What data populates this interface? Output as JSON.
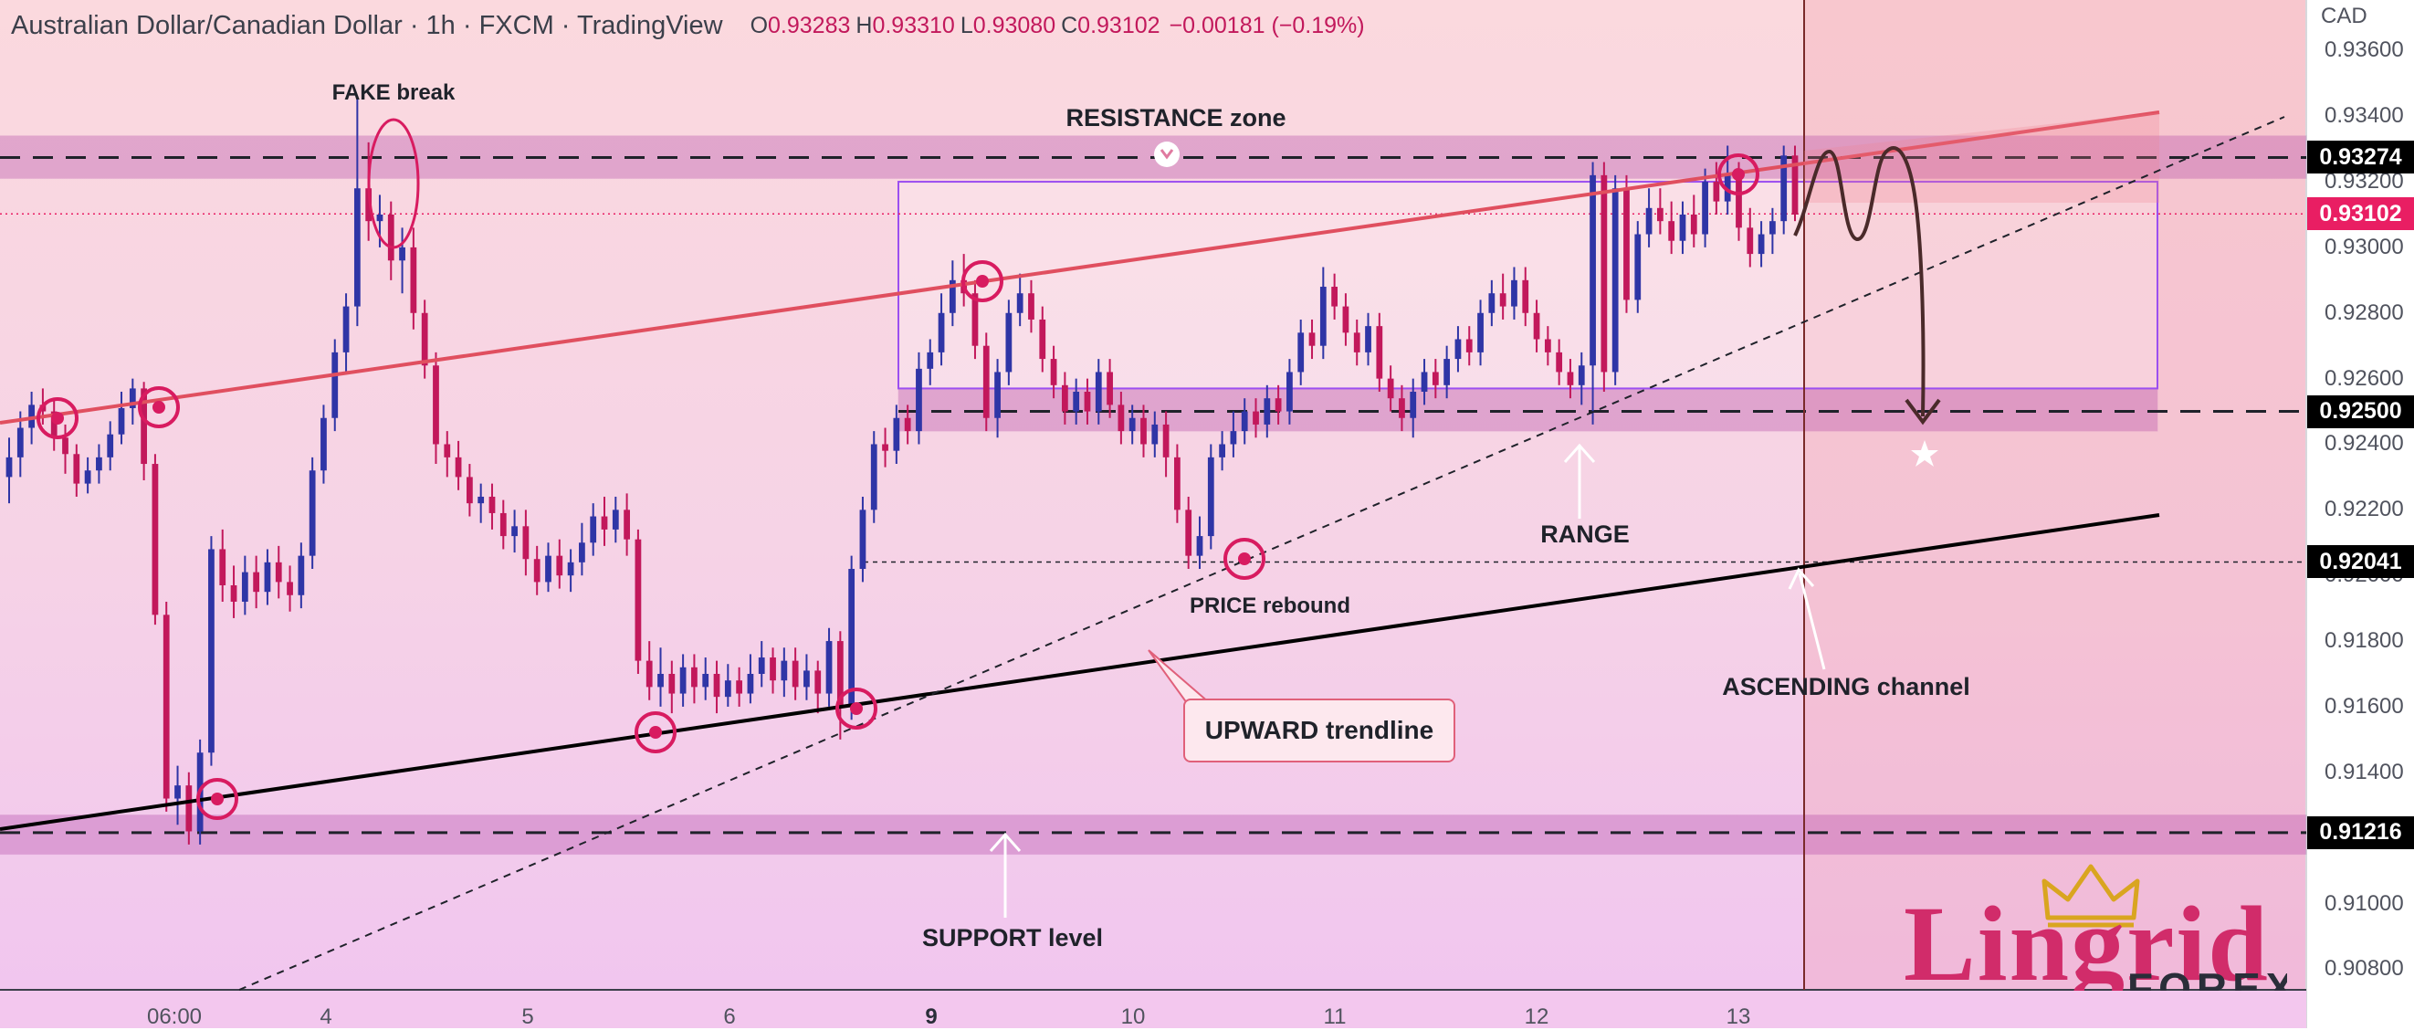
{
  "header": {
    "title": "Australian Dollar/Canadian Dollar · 1h · FXCM · TradingView",
    "ohlc": [
      {
        "label": "O",
        "value": "0.93283"
      },
      {
        "label": "H",
        "value": "0.93310"
      },
      {
        "label": "L",
        "value": "0.93080"
      },
      {
        "label": "C",
        "value": "0.93102"
      }
    ],
    "change": "−0.00181 (−0.19%)"
  },
  "axis_unit": "CAD",
  "colors": {
    "bull": "#2f35a6",
    "bear": "#c2185b",
    "resistance_line": "#e04f5f",
    "trendline": "#000000",
    "zone_fill": "#b44aa8",
    "range_box": "#9c4ff0",
    "forecast": "#4a2a2a",
    "price_tag": "#e91e63"
  },
  "chart_data": {
    "type": "candlestick",
    "y_range": [
      0.9062,
      0.9382
    ],
    "y_ticks": [
      "0.93600",
      "0.93400",
      "0.93200",
      "0.93000",
      "0.92800",
      "0.92600",
      "0.92400",
      "0.92200",
      "0.92000",
      "0.91800",
      "0.91600",
      "0.91400",
      "0.91200",
      "0.91000",
      "0.90800"
    ],
    "x_ticks": [
      {
        "label": "06:00",
        "bold": false
      },
      {
        "label": "4",
        "bold": false
      },
      {
        "label": "5",
        "bold": false
      },
      {
        "label": "6",
        "bold": false
      },
      {
        "label": "9",
        "bold": true
      },
      {
        "label": "10",
        "bold": false
      },
      {
        "label": "11",
        "bold": false
      },
      {
        "label": "12",
        "bold": false
      },
      {
        "label": "13",
        "bold": false
      }
    ],
    "price_tags": [
      {
        "value": "0.93274",
        "color": "#000000"
      },
      {
        "value": "0.93102",
        "color": "#e91e63"
      },
      {
        "value": "0.92500",
        "color": "#000000"
      },
      {
        "value": "0.92041",
        "color": "#000000"
      },
      {
        "value": "0.91216",
        "color": "#000000"
      }
    ],
    "levels": {
      "resistance": 0.93274,
      "range_low": 0.925,
      "price_rebound": 0.92041,
      "support": 0.91216,
      "current": 0.93102
    },
    "zones": [
      {
        "name": "resistance-zone",
        "from": 0.9321,
        "to": 0.9334
      },
      {
        "name": "range-low-zone",
        "from": 0.9244,
        "to": 0.9257
      },
      {
        "name": "support-zone",
        "from": 0.9115,
        "to": 0.9127
      }
    ],
    "range_box": {
      "from": 0.9257,
      "to": 0.932
    },
    "candles": [
      [
        0.923,
        0.9236,
        0.9222,
        0.9242
      ],
      [
        0.9236,
        0.9245,
        0.923,
        0.925
      ],
      [
        0.9245,
        0.9252,
        0.924,
        0.9256
      ],
      [
        0.9252,
        0.925,
        0.9246,
        0.9257
      ],
      [
        0.925,
        0.9242,
        0.9238,
        0.9254
      ],
      [
        0.9242,
        0.9237,
        0.9231,
        0.9246
      ],
      [
        0.9237,
        0.9228,
        0.9224,
        0.924
      ],
      [
        0.9228,
        0.9232,
        0.9225,
        0.9236
      ],
      [
        0.9232,
        0.9236,
        0.9228,
        0.924
      ],
      [
        0.9236,
        0.9243,
        0.9232,
        0.9247
      ],
      [
        0.9243,
        0.9251,
        0.924,
        0.9256
      ],
      [
        0.9251,
        0.9257,
        0.9246,
        0.926
      ],
      [
        0.9257,
        0.9234,
        0.9229,
        0.9259
      ],
      [
        0.9234,
        0.9188,
        0.9185,
        0.9237
      ],
      [
        0.9188,
        0.9132,
        0.9128,
        0.9192
      ],
      [
        0.9132,
        0.9136,
        0.9124,
        0.9142
      ],
      [
        0.9136,
        0.9122,
        0.9118,
        0.914
      ],
      [
        0.9122,
        0.9146,
        0.9118,
        0.915
      ],
      [
        0.9146,
        0.9208,
        0.9142,
        0.9212
      ],
      [
        0.9208,
        0.9197,
        0.9192,
        0.9214
      ],
      [
        0.9197,
        0.9192,
        0.9187,
        0.9203
      ],
      [
        0.9192,
        0.9201,
        0.9188,
        0.9206
      ],
      [
        0.9201,
        0.9195,
        0.919,
        0.9206
      ],
      [
        0.9195,
        0.9204,
        0.9191,
        0.9208
      ],
      [
        0.9204,
        0.9198,
        0.9193,
        0.9209
      ],
      [
        0.9198,
        0.9194,
        0.9189,
        0.9203
      ],
      [
        0.9194,
        0.9206,
        0.919,
        0.921
      ],
      [
        0.9206,
        0.9232,
        0.9202,
        0.9236
      ],
      [
        0.9232,
        0.9248,
        0.9228,
        0.9252
      ],
      [
        0.9248,
        0.9268,
        0.9244,
        0.9272
      ],
      [
        0.9268,
        0.9282,
        0.9262,
        0.9286
      ],
      [
        0.9282,
        0.9318,
        0.9276,
        0.9346
      ],
      [
        0.9318,
        0.9308,
        0.9302,
        0.9332
      ],
      [
        0.9308,
        0.931,
        0.93,
        0.9316
      ],
      [
        0.931,
        0.9296,
        0.929,
        0.9314
      ],
      [
        0.9296,
        0.93,
        0.9286,
        0.9306
      ],
      [
        0.93,
        0.928,
        0.9275,
        0.9306
      ],
      [
        0.928,
        0.9264,
        0.926,
        0.9284
      ],
      [
        0.9264,
        0.924,
        0.9234,
        0.9268
      ],
      [
        0.924,
        0.9236,
        0.923,
        0.9244
      ],
      [
        0.9236,
        0.923,
        0.9226,
        0.9241
      ],
      [
        0.923,
        0.9222,
        0.9218,
        0.9234
      ],
      [
        0.9222,
        0.9224,
        0.9216,
        0.9228
      ],
      [
        0.9224,
        0.9219,
        0.9214,
        0.9228
      ],
      [
        0.9219,
        0.9212,
        0.9208,
        0.9223
      ],
      [
        0.9212,
        0.9215,
        0.9207,
        0.922
      ],
      [
        0.9215,
        0.9205,
        0.92,
        0.922
      ],
      [
        0.9205,
        0.9198,
        0.9194,
        0.9209
      ],
      [
        0.9198,
        0.9206,
        0.9195,
        0.921
      ],
      [
        0.9206,
        0.92,
        0.9196,
        0.9211
      ],
      [
        0.92,
        0.9204,
        0.9195,
        0.9208
      ],
      [
        0.9204,
        0.921,
        0.92,
        0.9216
      ],
      [
        0.921,
        0.9218,
        0.9206,
        0.9222
      ],
      [
        0.9218,
        0.9214,
        0.9209,
        0.9224
      ],
      [
        0.9214,
        0.922,
        0.921,
        0.9224
      ],
      [
        0.922,
        0.9211,
        0.9206,
        0.9225
      ],
      [
        0.9211,
        0.9174,
        0.917,
        0.9214
      ],
      [
        0.9174,
        0.9166,
        0.9162,
        0.918
      ],
      [
        0.9166,
        0.917,
        0.916,
        0.9178
      ],
      [
        0.917,
        0.9164,
        0.9158,
        0.9174
      ],
      [
        0.9164,
        0.9172,
        0.916,
        0.9176
      ],
      [
        0.9172,
        0.9166,
        0.9161,
        0.9176
      ],
      [
        0.9166,
        0.917,
        0.9162,
        0.9175
      ],
      [
        0.917,
        0.9163,
        0.9158,
        0.9174
      ],
      [
        0.9163,
        0.9168,
        0.916,
        0.9173
      ],
      [
        0.9168,
        0.9164,
        0.916,
        0.9172
      ],
      [
        0.9164,
        0.917,
        0.9161,
        0.9176
      ],
      [
        0.917,
        0.9175,
        0.9166,
        0.918
      ],
      [
        0.9175,
        0.9168,
        0.9164,
        0.9178
      ],
      [
        0.9168,
        0.9174,
        0.9163,
        0.9178
      ],
      [
        0.9174,
        0.9166,
        0.9162,
        0.9178
      ],
      [
        0.9166,
        0.9171,
        0.9162,
        0.9176
      ],
      [
        0.9171,
        0.9164,
        0.9158,
        0.9174
      ],
      [
        0.9164,
        0.918,
        0.916,
        0.9184
      ],
      [
        0.918,
        0.916,
        0.915,
        0.9183
      ],
      [
        0.916,
        0.9202,
        0.9156,
        0.9206
      ],
      [
        0.9202,
        0.922,
        0.9198,
        0.9224
      ],
      [
        0.922,
        0.924,
        0.9216,
        0.9244
      ],
      [
        0.924,
        0.9238,
        0.9233,
        0.9245
      ],
      [
        0.9238,
        0.9248,
        0.9234,
        0.9252
      ],
      [
        0.9248,
        0.9244,
        0.924,
        0.9252
      ],
      [
        0.9244,
        0.9263,
        0.924,
        0.9268
      ],
      [
        0.9263,
        0.9268,
        0.9258,
        0.9272
      ],
      [
        0.9268,
        0.928,
        0.9264,
        0.9286
      ],
      [
        0.928,
        0.929,
        0.9276,
        0.9296
      ],
      [
        0.929,
        0.9286,
        0.9282,
        0.9298
      ],
      [
        0.9286,
        0.927,
        0.9266,
        0.929
      ],
      [
        0.927,
        0.9248,
        0.9244,
        0.9274
      ],
      [
        0.9248,
        0.9262,
        0.9242,
        0.9266
      ],
      [
        0.9262,
        0.928,
        0.9258,
        0.9284
      ],
      [
        0.928,
        0.9286,
        0.9276,
        0.9292
      ],
      [
        0.9286,
        0.9278,
        0.9274,
        0.929
      ],
      [
        0.9278,
        0.9266,
        0.9262,
        0.9282
      ],
      [
        0.9266,
        0.9258,
        0.9254,
        0.927
      ],
      [
        0.9258,
        0.925,
        0.9246,
        0.9262
      ],
      [
        0.925,
        0.9256,
        0.9246,
        0.926
      ],
      [
        0.9256,
        0.925,
        0.9246,
        0.926
      ],
      [
        0.925,
        0.9262,
        0.9246,
        0.9266
      ],
      [
        0.9262,
        0.9252,
        0.9248,
        0.9266
      ],
      [
        0.9252,
        0.9244,
        0.924,
        0.9256
      ],
      [
        0.9244,
        0.9248,
        0.924,
        0.9252
      ],
      [
        0.9248,
        0.924,
        0.9236,
        0.9252
      ],
      [
        0.924,
        0.9246,
        0.9236,
        0.925
      ],
      [
        0.9246,
        0.9236,
        0.923,
        0.925
      ],
      [
        0.9236,
        0.922,
        0.9216,
        0.924
      ],
      [
        0.922,
        0.9206,
        0.9202,
        0.9224
      ],
      [
        0.9206,
        0.9212,
        0.9202,
        0.9218
      ],
      [
        0.9212,
        0.9236,
        0.9208,
        0.924
      ],
      [
        0.9236,
        0.924,
        0.9232,
        0.9244
      ],
      [
        0.924,
        0.9244,
        0.9236,
        0.925
      ],
      [
        0.9244,
        0.925,
        0.924,
        0.9254
      ],
      [
        0.925,
        0.9246,
        0.9242,
        0.9254
      ],
      [
        0.9246,
        0.9254,
        0.9242,
        0.9258
      ],
      [
        0.9254,
        0.925,
        0.9246,
        0.9258
      ],
      [
        0.925,
        0.9262,
        0.9246,
        0.9266
      ],
      [
        0.9262,
        0.9274,
        0.9258,
        0.9278
      ],
      [
        0.9274,
        0.927,
        0.9266,
        0.9278
      ],
      [
        0.927,
        0.9288,
        0.9266,
        0.9294
      ],
      [
        0.9288,
        0.9282,
        0.9278,
        0.9292
      ],
      [
        0.9282,
        0.9274,
        0.927,
        0.9286
      ],
      [
        0.9274,
        0.9268,
        0.9264,
        0.9278
      ],
      [
        0.9268,
        0.9276,
        0.9264,
        0.928
      ],
      [
        0.9276,
        0.926,
        0.9256,
        0.928
      ],
      [
        0.926,
        0.9254,
        0.925,
        0.9264
      ],
      [
        0.9254,
        0.9248,
        0.9244,
        0.9258
      ],
      [
        0.9248,
        0.9256,
        0.9242,
        0.926
      ],
      [
        0.9256,
        0.9262,
        0.9252,
        0.9266
      ],
      [
        0.9262,
        0.9258,
        0.9254,
        0.9266
      ],
      [
        0.9258,
        0.9266,
        0.9254,
        0.927
      ],
      [
        0.9266,
        0.9272,
        0.9262,
        0.9276
      ],
      [
        0.9272,
        0.9268,
        0.9264,
        0.9276
      ],
      [
        0.9268,
        0.928,
        0.9264,
        0.9284
      ],
      [
        0.928,
        0.9286,
        0.9276,
        0.929
      ],
      [
        0.9286,
        0.9282,
        0.9278,
        0.9292
      ],
      [
        0.9282,
        0.929,
        0.9278,
        0.9294
      ],
      [
        0.929,
        0.928,
        0.9276,
        0.9294
      ],
      [
        0.928,
        0.9272,
        0.9268,
        0.9284
      ],
      [
        0.9272,
        0.9268,
        0.9264,
        0.9276
      ],
      [
        0.9268,
        0.9262,
        0.9258,
        0.9272
      ],
      [
        0.9262,
        0.9258,
        0.9254,
        0.9266
      ],
      [
        0.9258,
        0.9264,
        0.9252,
        0.9268
      ],
      [
        0.9264,
        0.9322,
        0.9246,
        0.9326
      ],
      [
        0.9322,
        0.9262,
        0.9256,
        0.9326
      ],
      [
        0.9262,
        0.9318,
        0.9258,
        0.9322
      ],
      [
        0.9318,
        0.9284,
        0.928,
        0.9322
      ],
      [
        0.9284,
        0.9304,
        0.928,
        0.9308
      ],
      [
        0.9304,
        0.9312,
        0.93,
        0.9318
      ],
      [
        0.9312,
        0.9308,
        0.9304,
        0.9318
      ],
      [
        0.9308,
        0.9302,
        0.9298,
        0.9314
      ],
      [
        0.9302,
        0.931,
        0.9298,
        0.9314
      ],
      [
        0.931,
        0.9304,
        0.93,
        0.9316
      ],
      [
        0.9304,
        0.932,
        0.93,
        0.9324
      ],
      [
        0.932,
        0.9314,
        0.931,
        0.9326
      ],
      [
        0.9314,
        0.9322,
        0.931,
        0.9331
      ],
      [
        0.9322,
        0.9306,
        0.9302,
        0.9326
      ],
      [
        0.9306,
        0.9298,
        0.9294,
        0.9312
      ],
      [
        0.9298,
        0.9304,
        0.9294,
        0.9308
      ],
      [
        0.9304,
        0.9308,
        0.9298,
        0.9312
      ],
      [
        0.9308,
        0.9328,
        0.9304,
        0.9331
      ],
      [
        0.9328,
        0.931,
        0.9308,
        0.9331
      ]
    ],
    "annotations": {
      "fake_break": "FAKE break",
      "resistance_zone": "RESISTANCE zone",
      "range": "RANGE",
      "price_rebound": "PRICE rebound",
      "ascending_channel": "ASCENDING channel",
      "upward_trendline": "UPWARD trendline",
      "support_level": "SUPPORT level"
    }
  },
  "logo": {
    "brand": "Lingrid",
    "sub": "FOREX"
  }
}
